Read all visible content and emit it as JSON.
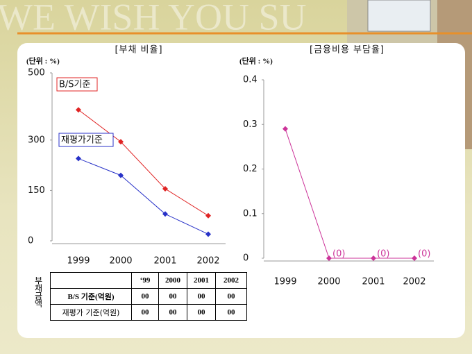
{
  "background_text": "WE WISH YOU SU",
  "chart_data": [
    {
      "type": "line",
      "title": "[부채 비율]",
      "unit": "(단위 : %)",
      "categories": [
        "1999",
        "2000",
        "2001",
        "2002"
      ],
      "series": [
        {
          "name": "B/S기준",
          "color": "#e02424",
          "values": [
            390,
            295,
            155,
            75
          ]
        },
        {
          "name": "재평가기준",
          "color": "#2832c8",
          "values": [
            245,
            195,
            80,
            20
          ]
        }
      ],
      "ylim": [
        0,
        500
      ],
      "yticks": [
        0,
        150,
        300,
        500
      ],
      "grid": false
    },
    {
      "type": "line",
      "title": "[금융비용 부담율]",
      "unit": "(단위 : %)",
      "categories": [
        "1999",
        "2000",
        "2001",
        "2002"
      ],
      "values": [
        0.29,
        0,
        0,
        0
      ],
      "value_labels": [
        null,
        "(0)",
        "(0)",
        "(0)"
      ],
      "color": "#cc3399",
      "ylim": [
        0,
        0.4
      ],
      "yticks": [
        0,
        0.1,
        0.2,
        0.3,
        0.4
      ],
      "grid": false
    }
  ],
  "table": {
    "side_label": "부채금액",
    "header": [
      "‘99",
      "2000",
      "2001",
      "2002"
    ],
    "rows": [
      [
        "B/S 기준(억원)",
        "00",
        "00",
        "00",
        "00"
      ],
      [
        "재평가 기준(억원)",
        "00",
        "00",
        "00",
        "00"
      ]
    ]
  }
}
